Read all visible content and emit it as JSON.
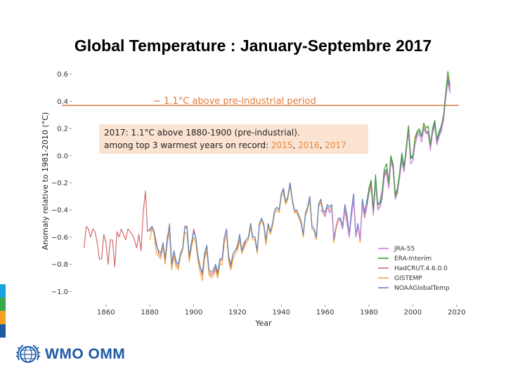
{
  "title": "Global Temperature : January-Septembre 2017",
  "colors": {
    "reference_line": "#e07b39",
    "annotation_bg": "#fbe3d2",
    "year_highlight": "#e8873a",
    "logo_blue": "#1d5aa6",
    "stripes": [
      "#1aa3e0",
      "#3aa84a",
      "#f4a21d",
      "#1d5aa6"
    ]
  },
  "annotation": {
    "line1": "2017: 1.1°C above 1880-1900 (pre-industrial).",
    "line2_prefix": "among top 3 warmest years on record: ",
    "year1": "2015",
    "sep1": ", ",
    "year2": "2016",
    "sep2": ", ",
    "year3": "2017"
  },
  "logo": {
    "text": "WMO OMM",
    "icon": "wmo-globe-icon"
  },
  "chart_data": {
    "type": "line",
    "xlabel": "Year",
    "ylabel": "Anomaly relative to 1981-2010 (°C)",
    "xlim": [
      1845,
      2022
    ],
    "ylim": [
      -1.05,
      0.65
    ],
    "xticks": [
      1860,
      1880,
      1900,
      1920,
      1940,
      1960,
      1980,
      2000,
      2020
    ],
    "yticks": [
      0.6,
      0.4,
      0.2,
      0.0,
      -0.2,
      -0.4,
      -0.6,
      -0.8,
      -1.0
    ],
    "ytick_labels": [
      "0.6",
      "0.4",
      "0.2",
      "0.0",
      "−0.2",
      "−0.4",
      "−0.6",
      "−0.8",
      "−1.0"
    ],
    "grid": false,
    "legend_position": "bottom-right",
    "reference_line": {
      "y": 0.37,
      "label": "~ 1.1°C above pre-industrial period"
    },
    "series": [
      {
        "name": "JRA-55",
        "color": "#c77fd6",
        "x": [
          1958,
          1959,
          1960,
          1961,
          1962,
          1963,
          1964,
          1965,
          1966,
          1967,
          1968,
          1969,
          1970,
          1971,
          1972,
          1973,
          1974,
          1975,
          1976,
          1977,
          1978,
          1979,
          1980,
          1981,
          1982,
          1983,
          1984,
          1985,
          1986,
          1987,
          1988,
          1989,
          1990,
          1991,
          1992,
          1993,
          1994,
          1995,
          1996,
          1997,
          1998,
          1999,
          2000,
          2001,
          2002,
          2003,
          2004,
          2005,
          2006,
          2007,
          2008,
          2009,
          2010,
          2011,
          2012,
          2013,
          2014,
          2015,
          2016,
          2017
        ],
        "y": [
          -0.4,
          -0.42,
          -0.45,
          -0.38,
          -0.42,
          -0.4,
          -0.6,
          -0.52,
          -0.46,
          -0.48,
          -0.54,
          -0.4,
          -0.5,
          -0.6,
          -0.45,
          -0.32,
          -0.6,
          -0.52,
          -0.62,
          -0.36,
          -0.46,
          -0.38,
          -0.28,
          -0.24,
          -0.44,
          -0.2,
          -0.4,
          -0.38,
          -0.32,
          -0.16,
          -0.12,
          -0.24,
          -0.04,
          -0.1,
          -0.32,
          -0.28,
          -0.16,
          -0.04,
          -0.12,
          0.02,
          0.18,
          -0.06,
          -0.04,
          0.08,
          0.14,
          0.16,
          0.1,
          0.2,
          0.16,
          0.18,
          0.04,
          0.16,
          0.22,
          0.08,
          0.14,
          0.18,
          0.26,
          0.42,
          0.54,
          0.46
        ]
      },
      {
        "name": "ERA-Interim",
        "color": "#3e9a3e",
        "x": [
          1979,
          1980,
          1981,
          1982,
          1983,
          1984,
          1985,
          1986,
          1987,
          1988,
          1989,
          1990,
          1991,
          1992,
          1993,
          1994,
          1995,
          1996,
          1997,
          1998,
          1999,
          2000,
          2001,
          2002,
          2003,
          2004,
          2005,
          2006,
          2007,
          2008,
          2009,
          2010,
          2011,
          2012,
          2013,
          2014,
          2015,
          2016,
          2017
        ],
        "y": [
          -0.36,
          -0.24,
          -0.18,
          -0.4,
          -0.14,
          -0.36,
          -0.34,
          -0.26,
          -0.1,
          -0.06,
          -0.2,
          0.0,
          -0.06,
          -0.3,
          -0.24,
          -0.12,
          0.02,
          -0.08,
          0.06,
          0.22,
          -0.02,
          0.0,
          0.12,
          0.18,
          0.2,
          0.14,
          0.24,
          0.2,
          0.22,
          0.08,
          0.2,
          0.26,
          0.12,
          0.18,
          0.22,
          0.3,
          0.46,
          0.62,
          0.52
        ]
      },
      {
        "name": "HadCRUT.4.6.0.0",
        "color": "#d46a6a",
        "x": [
          1850,
          1851,
          1852,
          1853,
          1854,
          1855,
          1856,
          1857,
          1858,
          1859,
          1860,
          1861,
          1862,
          1863,
          1864,
          1865,
          1866,
          1867,
          1868,
          1869,
          1870,
          1871,
          1872,
          1873,
          1874,
          1875,
          1876,
          1877,
          1878,
          1879,
          1880,
          1881,
          1882,
          1883,
          1884,
          1885,
          1886,
          1887,
          1888,
          1889,
          1890,
          1891,
          1892,
          1893,
          1894,
          1895,
          1896,
          1897,
          1898,
          1899,
          1900,
          1901,
          1902,
          1903,
          1904,
          1905,
          1906,
          1907,
          1908,
          1909,
          1910,
          1911,
          1912,
          1913,
          1914,
          1915,
          1916,
          1917,
          1918,
          1919,
          1920,
          1921,
          1922,
          1923,
          1924,
          1925,
          1926,
          1927,
          1928,
          1929,
          1930,
          1931,
          1932,
          1933,
          1934,
          1935,
          1936,
          1937,
          1938,
          1939,
          1940,
          1941,
          1942,
          1943,
          1944,
          1945,
          1946,
          1947,
          1948,
          1949,
          1950,
          1951,
          1952,
          1953,
          1954,
          1955,
          1956,
          1957,
          1958,
          1959,
          1960,
          1961,
          1962,
          1963,
          1964,
          1965,
          1966,
          1967,
          1968,
          1969,
          1970,
          1971,
          1972,
          1973,
          1974,
          1975,
          1976,
          1977,
          1978,
          1979,
          1980,
          1981,
          1982,
          1983,
          1984,
          1985,
          1986,
          1987,
          1988,
          1989,
          1990,
          1991,
          1992,
          1993,
          1994,
          1995,
          1996,
          1997,
          1998,
          1999,
          2000,
          2001,
          2002,
          2003,
          2004,
          2005,
          2006,
          2007,
          2008,
          2009,
          2010,
          2011,
          2012,
          2013,
          2014,
          2015,
          2016,
          2017
        ],
        "y": [
          -0.68,
          -0.52,
          -0.54,
          -0.6,
          -0.54,
          -0.56,
          -0.64,
          -0.76,
          -0.76,
          -0.58,
          -0.64,
          -0.8,
          -0.62,
          -0.62,
          -0.82,
          -0.56,
          -0.6,
          -0.54,
          -0.58,
          -0.62,
          -0.54,
          -0.56,
          -0.58,
          -0.62,
          -0.68,
          -0.58,
          -0.7,
          -0.42,
          -0.26,
          -0.56,
          -0.54,
          -0.52,
          -0.56,
          -0.64,
          -0.72,
          -0.74,
          -0.68,
          -0.76,
          -0.62,
          -0.5,
          -0.8,
          -0.7,
          -0.8,
          -0.82,
          -0.72,
          -0.68,
          -0.52,
          -0.52,
          -0.76,
          -0.66,
          -0.54,
          -0.6,
          -0.76,
          -0.82,
          -0.88,
          -0.74,
          -0.66,
          -0.86,
          -0.88,
          -0.86,
          -0.82,
          -0.88,
          -0.78,
          -0.76,
          -0.6,
          -0.54,
          -0.76,
          -0.82,
          -0.72,
          -0.7,
          -0.68,
          -0.58,
          -0.7,
          -0.66,
          -0.62,
          -0.6,
          -0.5,
          -0.6,
          -0.6,
          -0.7,
          -0.5,
          -0.46,
          -0.5,
          -0.64,
          -0.5,
          -0.56,
          -0.5,
          -0.4,
          -0.38,
          -0.4,
          -0.28,
          -0.26,
          -0.34,
          -0.3,
          -0.2,
          -0.32,
          -0.42,
          -0.4,
          -0.44,
          -0.48,
          -0.58,
          -0.44,
          -0.38,
          -0.3,
          -0.52,
          -0.54,
          -0.6,
          -0.36,
          -0.32,
          -0.4,
          -0.42,
          -0.36,
          -0.38,
          -0.36,
          -0.62,
          -0.52,
          -0.46,
          -0.46,
          -0.52,
          -0.38,
          -0.46,
          -0.58,
          -0.42,
          -0.3,
          -0.58,
          -0.52,
          -0.62,
          -0.34,
          -0.42,
          -0.34,
          -0.26,
          -0.22,
          -0.42,
          -0.2,
          -0.38,
          -0.38,
          -0.32,
          -0.14,
          -0.12,
          -0.24,
          -0.04,
          -0.08,
          -0.3,
          -0.26,
          -0.16,
          -0.02,
          -0.12,
          0.04,
          0.22,
          -0.02,
          -0.02,
          0.12,
          0.16,
          0.18,
          0.14,
          0.2,
          0.18,
          0.16,
          0.06,
          0.18,
          0.24,
          0.1,
          0.16,
          0.2,
          0.26,
          0.44,
          0.58,
          0.5
        ]
      },
      {
        "name": "GISTEMP",
        "color": "#f2a13c",
        "x": [
          1880,
          1881,
          1882,
          1883,
          1884,
          1885,
          1886,
          1887,
          1888,
          1889,
          1890,
          1891,
          1892,
          1893,
          1894,
          1895,
          1896,
          1897,
          1898,
          1899,
          1900,
          1901,
          1902,
          1903,
          1904,
          1905,
          1906,
          1907,
          1908,
          1909,
          1910,
          1911,
          1912,
          1913,
          1914,
          1915,
          1916,
          1917,
          1918,
          1919,
          1920,
          1921,
          1922,
          1923,
          1924,
          1925,
          1926,
          1927,
          1928,
          1929,
          1930,
          1931,
          1932,
          1933,
          1934,
          1935,
          1936,
          1937,
          1938,
          1939,
          1940,
          1941,
          1942,
          1943,
          1944,
          1945,
          1946,
          1947,
          1948,
          1949,
          1950,
          1951,
          1952,
          1953,
          1954,
          1955,
          1956,
          1957,
          1958,
          1959,
          1960,
          1961,
          1962,
          1963,
          1964,
          1965,
          1966,
          1967,
          1968,
          1969,
          1970,
          1971,
          1972,
          1973,
          1974,
          1975,
          1976,
          1977,
          1978,
          1979,
          1980,
          1981,
          1982,
          1983,
          1984,
          1985,
          1986,
          1987,
          1988,
          1989,
          1990,
          1991,
          1992,
          1993,
          1994,
          1995,
          1996,
          1997,
          1998,
          1999,
          2000,
          2001,
          2002,
          2003,
          2004,
          2005,
          2006,
          2007,
          2008,
          2009,
          2010,
          2011,
          2012,
          2013,
          2014,
          2015,
          2016,
          2017
        ],
        "y": [
          -0.62,
          -0.54,
          -0.58,
          -0.72,
          -0.74,
          -0.76,
          -0.66,
          -0.8,
          -0.64,
          -0.56,
          -0.84,
          -0.74,
          -0.82,
          -0.84,
          -0.74,
          -0.7,
          -0.56,
          -0.58,
          -0.78,
          -0.68,
          -0.6,
          -0.64,
          -0.78,
          -0.86,
          -0.92,
          -0.76,
          -0.7,
          -0.88,
          -0.9,
          -0.88,
          -0.84,
          -0.9,
          -0.8,
          -0.8,
          -0.64,
          -0.58,
          -0.78,
          -0.84,
          -0.76,
          -0.72,
          -0.7,
          -0.62,
          -0.72,
          -0.68,
          -0.64,
          -0.62,
          -0.52,
          -0.62,
          -0.62,
          -0.72,
          -0.52,
          -0.48,
          -0.52,
          -0.66,
          -0.52,
          -0.58,
          -0.52,
          -0.42,
          -0.4,
          -0.42,
          -0.3,
          -0.28,
          -0.36,
          -0.32,
          -0.22,
          -0.34,
          -0.42,
          -0.42,
          -0.46,
          -0.5,
          -0.6,
          -0.44,
          -0.4,
          -0.32,
          -0.54,
          -0.56,
          -0.62,
          -0.38,
          -0.34,
          -0.42,
          -0.44,
          -0.38,
          -0.4,
          -0.38,
          -0.64,
          -0.54,
          -0.48,
          -0.48,
          -0.54,
          -0.38,
          -0.46,
          -0.6,
          -0.42,
          -0.3,
          -0.6,
          -0.52,
          -0.64,
          -0.34,
          -0.44,
          -0.36,
          -0.26,
          -0.2,
          -0.42,
          -0.18,
          -0.38,
          -0.38,
          -0.3,
          -0.14,
          -0.1,
          -0.22,
          -0.02,
          -0.06,
          -0.3,
          -0.26,
          -0.14,
          0.0,
          -0.1,
          0.04,
          0.22,
          0.0,
          -0.02,
          0.14,
          0.18,
          0.18,
          0.14,
          0.22,
          0.18,
          0.18,
          0.06,
          0.18,
          0.26,
          0.1,
          0.16,
          0.2,
          0.28,
          0.46,
          0.58,
          0.5
        ]
      },
      {
        "name": "NOAAGlobalTemp",
        "color": "#5a86c2",
        "x": [
          1880,
          1881,
          1882,
          1883,
          1884,
          1885,
          1886,
          1887,
          1888,
          1889,
          1890,
          1891,
          1892,
          1893,
          1894,
          1895,
          1896,
          1897,
          1898,
          1899,
          1900,
          1901,
          1902,
          1903,
          1904,
          1905,
          1906,
          1907,
          1908,
          1909,
          1910,
          1911,
          1912,
          1913,
          1914,
          1915,
          1916,
          1917,
          1918,
          1919,
          1920,
          1921,
          1922,
          1923,
          1924,
          1925,
          1926,
          1927,
          1928,
          1929,
          1930,
          1931,
          1932,
          1933,
          1934,
          1935,
          1936,
          1937,
          1938,
          1939,
          1940,
          1941,
          1942,
          1943,
          1944,
          1945,
          1946,
          1947,
          1948,
          1949,
          1950,
          1951,
          1952,
          1953,
          1954,
          1955,
          1956,
          1957,
          1958,
          1959,
          1960,
          1961,
          1962,
          1963,
          1964,
          1965,
          1966,
          1967,
          1968,
          1969,
          1970,
          1971,
          1972,
          1973,
          1974,
          1975,
          1976,
          1977,
          1978,
          1979,
          1980,
          1981,
          1982,
          1983,
          1984,
          1985,
          1986,
          1987,
          1988,
          1989,
          1990,
          1991,
          1992,
          1993,
          1994,
          1995,
          1996,
          1997,
          1998,
          1999,
          2000,
          2001,
          2002,
          2003,
          2004,
          2005,
          2006,
          2007,
          2008,
          2009,
          2010,
          2011,
          2012,
          2013,
          2014,
          2015,
          2016,
          2017
        ],
        "y": [
          -0.56,
          -0.52,
          -0.56,
          -0.66,
          -0.7,
          -0.72,
          -0.64,
          -0.76,
          -0.6,
          -0.52,
          -0.8,
          -0.7,
          -0.78,
          -0.8,
          -0.72,
          -0.68,
          -0.52,
          -0.54,
          -0.74,
          -0.64,
          -0.56,
          -0.6,
          -0.74,
          -0.82,
          -0.86,
          -0.72,
          -0.66,
          -0.84,
          -0.86,
          -0.84,
          -0.8,
          -0.86,
          -0.76,
          -0.76,
          -0.6,
          -0.54,
          -0.74,
          -0.8,
          -0.72,
          -0.7,
          -0.66,
          -0.58,
          -0.7,
          -0.64,
          -0.62,
          -0.6,
          -0.5,
          -0.6,
          -0.6,
          -0.7,
          -0.5,
          -0.46,
          -0.5,
          -0.62,
          -0.5,
          -0.56,
          -0.5,
          -0.4,
          -0.38,
          -0.4,
          -0.28,
          -0.24,
          -0.34,
          -0.3,
          -0.2,
          -0.32,
          -0.4,
          -0.4,
          -0.44,
          -0.48,
          -0.58,
          -0.42,
          -0.38,
          -0.3,
          -0.52,
          -0.54,
          -0.6,
          -0.36,
          -0.32,
          -0.4,
          -0.42,
          -0.36,
          -0.38,
          -0.36,
          -0.62,
          -0.52,
          -0.46,
          -0.46,
          -0.52,
          -0.36,
          -0.44,
          -0.58,
          -0.4,
          -0.28,
          -0.58,
          -0.5,
          -0.62,
          -0.32,
          -0.42,
          -0.34,
          -0.24,
          -0.2,
          -0.4,
          -0.18,
          -0.36,
          -0.36,
          -0.3,
          -0.12,
          -0.1,
          -0.22,
          -0.02,
          -0.06,
          -0.28,
          -0.24,
          -0.14,
          0.0,
          -0.1,
          0.06,
          0.2,
          0.0,
          -0.02,
          0.12,
          0.16,
          0.18,
          0.14,
          0.2,
          0.18,
          0.16,
          0.06,
          0.16,
          0.24,
          0.1,
          0.16,
          0.2,
          0.26,
          0.44,
          0.56,
          0.48
        ]
      }
    ]
  }
}
